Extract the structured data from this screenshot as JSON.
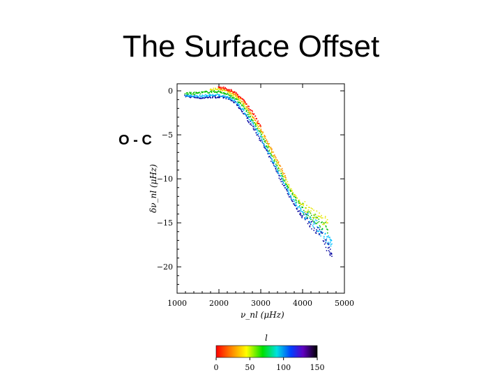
{
  "slide": {
    "title": "The Surface Offset",
    "side_label": "O - C"
  },
  "chart_data": {
    "type": "scatter",
    "title": "",
    "xlabel": "ν_nl  (μHz)",
    "ylabel": "δν_nl  (μHz)",
    "xlim": [
      1000,
      5000
    ],
    "ylim": [
      -23,
      0.8
    ],
    "xticks": [
      1000,
      2000,
      3000,
      4000,
      5000
    ],
    "yticks": [
      0,
      -5,
      -10,
      -15,
      -20
    ],
    "xtick_labels": [
      "1000",
      "2000",
      "3000",
      "4000",
      "5000"
    ],
    "ytick_labels": [
      "0",
      "−5",
      "−10",
      "−15",
      "−20"
    ],
    "colorbar": {
      "label": "l",
      "range": [
        0,
        150
      ],
      "ticks": [
        0,
        50,
        100,
        150
      ],
      "tick_labels": [
        "0",
        "50",
        "100",
        "150"
      ],
      "colormap": "rainbow (red → yellow → green → cyan → blue → purple → black)"
    },
    "series": [
      {
        "color": "#0000a0",
        "points": [
          [
            1200,
            -0.6
          ],
          [
            1400,
            -0.7
          ],
          [
            1600,
            -0.8
          ],
          [
            1800,
            -0.7
          ],
          [
            2000,
            -0.7
          ],
          [
            2200,
            -0.8
          ],
          [
            2400,
            -1.4
          ],
          [
            2600,
            -2.6
          ],
          [
            2800,
            -4.0
          ],
          [
            3000,
            -5.6
          ],
          [
            3200,
            -7.4
          ],
          [
            3400,
            -9.3
          ],
          [
            3600,
            -11.2
          ],
          [
            3800,
            -13.0
          ],
          [
            4000,
            -14.3
          ],
          [
            4200,
            -15.0
          ],
          [
            4400,
            -16.1
          ],
          [
            4600,
            -17.7
          ],
          [
            4700,
            -18.8
          ]
        ]
      },
      {
        "color": "#00bfff",
        "points": [
          [
            1200,
            -0.5
          ],
          [
            1400,
            -0.6
          ],
          [
            1600,
            -0.6
          ],
          [
            1800,
            -0.5
          ],
          [
            2000,
            -0.5
          ],
          [
            2200,
            -0.7
          ],
          [
            2400,
            -1.2
          ],
          [
            2600,
            -2.3
          ],
          [
            2800,
            -3.7
          ],
          [
            3000,
            -5.3
          ],
          [
            3200,
            -7.1
          ],
          [
            3400,
            -9.0
          ],
          [
            3600,
            -10.9
          ],
          [
            3800,
            -12.6
          ],
          [
            4000,
            -13.8
          ],
          [
            4200,
            -14.6
          ],
          [
            4400,
            -15.7
          ],
          [
            4600,
            -16.9
          ],
          [
            4700,
            -17.4
          ]
        ]
      },
      {
        "color": "#00c000",
        "points": [
          [
            1200,
            -0.3
          ],
          [
            1400,
            -0.3
          ],
          [
            1600,
            -0.2
          ],
          [
            1800,
            -0.1
          ],
          [
            2000,
            -0.1
          ],
          [
            2200,
            -0.4
          ],
          [
            2400,
            -0.9
          ],
          [
            2600,
            -1.9
          ],
          [
            2800,
            -3.3
          ],
          [
            3000,
            -4.9
          ],
          [
            3200,
            -6.7
          ],
          [
            3400,
            -8.6
          ],
          [
            3600,
            -10.5
          ],
          [
            3800,
            -12.1
          ],
          [
            4000,
            -13.3
          ],
          [
            4200,
            -14.1
          ],
          [
            4400,
            -15.0
          ],
          [
            4600,
            -15.8
          ]
        ]
      },
      {
        "color": "#e6e600",
        "points": [
          [
            1800,
            0.2
          ],
          [
            2000,
            0.2
          ],
          [
            2200,
            -0.1
          ],
          [
            2400,
            -0.6
          ],
          [
            2600,
            -1.6
          ],
          [
            2800,
            -3.0
          ],
          [
            3000,
            -4.6
          ],
          [
            3200,
            -6.4
          ],
          [
            3400,
            -8.3
          ],
          [
            3600,
            -10.2
          ],
          [
            3800,
            -11.8
          ],
          [
            4000,
            -13.0
          ],
          [
            4200,
            -13.7
          ],
          [
            4400,
            -14.4
          ],
          [
            4600,
            -15.0
          ]
        ]
      },
      {
        "color": "#ff8c00",
        "points": [
          [
            2000,
            0.3
          ],
          [
            2200,
            0.1
          ],
          [
            2400,
            -0.4
          ],
          [
            2600,
            -1.3
          ],
          [
            2800,
            -2.7
          ],
          [
            3000,
            -4.3
          ],
          [
            3200,
            -6.1
          ],
          [
            3400,
            -8.0
          ],
          [
            3600,
            -9.9
          ]
        ]
      },
      {
        "color": "#ff0000",
        "points": [
          [
            2000,
            0.4
          ],
          [
            2200,
            0.2
          ],
          [
            2400,
            -0.2
          ],
          [
            2600,
            -1.1
          ],
          [
            2800,
            -2.4
          ],
          [
            3000,
            -4.0
          ]
        ]
      }
    ]
  }
}
